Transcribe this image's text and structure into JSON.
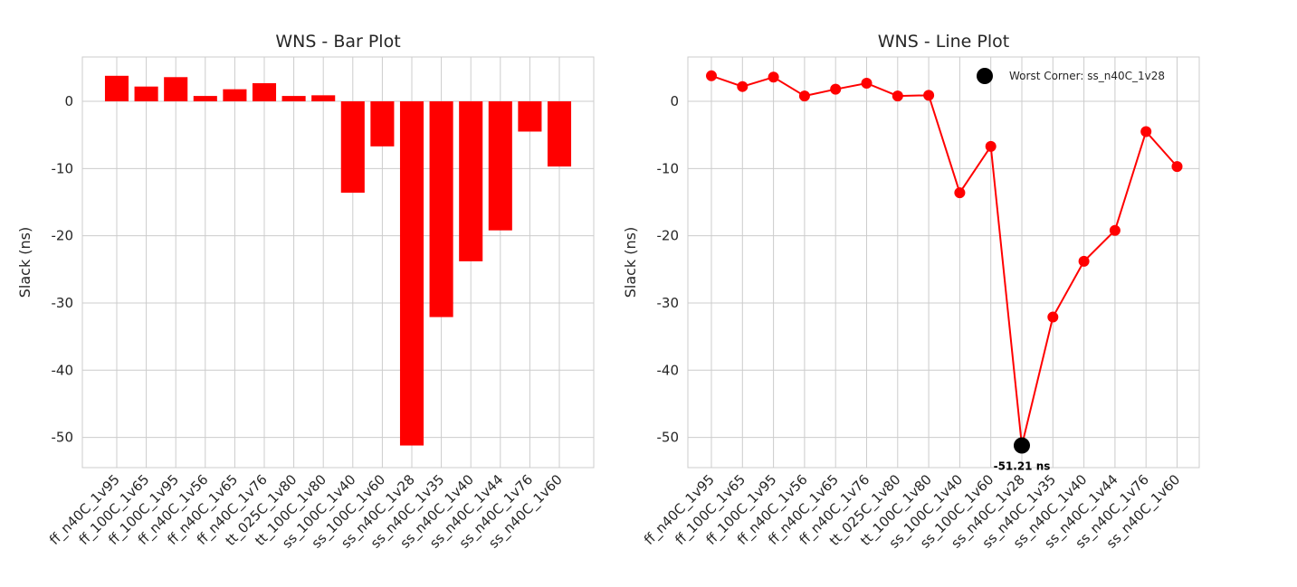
{
  "chart_data": [
    {
      "type": "bar",
      "title": "WNS - Bar Plot",
      "xlabel": "",
      "ylabel": "Slack (ns)",
      "ylim": [
        -54.5,
        6.6
      ],
      "yticks": [
        0,
        -10,
        -20,
        -30,
        -40,
        -50
      ],
      "grid": true,
      "color": "#ff0000",
      "categories": [
        "ff_n40C_1v95",
        "ff_100C_1v65",
        "ff_100C_1v95",
        "ff_n40C_1v56",
        "ff_n40C_1v65",
        "ff_n40C_1v76",
        "tt_025C_1v80",
        "tt_100C_1v80",
        "ss_100C_1v40",
        "ss_100C_1v60",
        "ss_n40C_1v28",
        "ss_n40C_1v35",
        "ss_n40C_1v40",
        "ss_n40C_1v44",
        "ss_n40C_1v76",
        "ss_n40C_1v60"
      ],
      "values": [
        3.8,
        2.2,
        3.6,
        0.8,
        1.8,
        2.7,
        0.8,
        0.9,
        -13.6,
        -6.7,
        -51.21,
        -32.1,
        -23.8,
        -19.2,
        -4.5,
        -9.7
      ]
    },
    {
      "type": "line",
      "title": "WNS - Line Plot",
      "xlabel": "",
      "ylabel": "Slack (ns)",
      "ylim": [
        -54.5,
        6.6
      ],
      "yticks": [
        0,
        -10,
        -20,
        -30,
        -40,
        -50
      ],
      "grid": true,
      "color": "#ff0000",
      "highlight_color": "#000000",
      "categories": [
        "ff_n40C_1v95",
        "ff_100C_1v65",
        "ff_100C_1v95",
        "ff_n40C_1v56",
        "ff_n40C_1v65",
        "ff_n40C_1v76",
        "tt_025C_1v80",
        "tt_100C_1v80",
        "ss_100C_1v40",
        "ss_100C_1v60",
        "ss_n40C_1v28",
        "ss_n40C_1v35",
        "ss_n40C_1v40",
        "ss_n40C_1v44",
        "ss_n40C_1v76",
        "ss_n40C_1v60"
      ],
      "values": [
        3.8,
        2.2,
        3.6,
        0.8,
        1.8,
        2.7,
        0.8,
        0.9,
        -13.6,
        -6.7,
        -51.21,
        -32.1,
        -23.8,
        -19.2,
        -4.5,
        -9.7
      ],
      "legend": {
        "entries": [
          "Worst Corner: ss_n40C_1v28"
        ],
        "placement": "top-right"
      },
      "annotation": {
        "text": "-51.21 ns",
        "category": "ss_n40C_1v28",
        "value": -51.21
      }
    }
  ]
}
